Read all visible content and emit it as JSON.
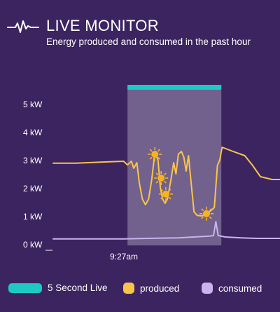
{
  "header": {
    "icon": "pulse-icon",
    "title": "LIVE MONITOR",
    "subtitle": "Energy produced and consumed in the past hour"
  },
  "colors": {
    "background": "#3c2460",
    "live_bar": "#1ec9c5",
    "highlight": "rgba(255,255,255,0.28)",
    "produced": "#f9c44a",
    "consumed": "#c8b4ee",
    "sun": "#f9b21e"
  },
  "legend": [
    {
      "key": "live",
      "label": "5 Second Live"
    },
    {
      "key": "produced",
      "label": "produced"
    },
    {
      "key": "consumed",
      "label": "consumed"
    }
  ],
  "chart_data": {
    "type": "line",
    "title": "",
    "xlabel": "",
    "ylabel": "",
    "ylim": [
      0,
      5
    ],
    "yticks": [
      "5 kW",
      "4 kW",
      "3 kW",
      "2 kW",
      "1 kW",
      "0 kW"
    ],
    "xticks": [
      "9:27am"
    ],
    "grid": false,
    "legend_position": "bottom",
    "series": [
      {
        "name": "produced",
        "points": [
          [
            0,
            2.88
          ],
          [
            3,
            2.88
          ],
          [
            6,
            2.92
          ],
          [
            9,
            2.95
          ],
          [
            9.5,
            2.82
          ],
          [
            10,
            2.95
          ],
          [
            10.3,
            2.7
          ],
          [
            10.7,
            2.9
          ],
          [
            11,
            2.2
          ],
          [
            11.4,
            1.6
          ],
          [
            11.8,
            1.4
          ],
          [
            12.2,
            1.6
          ],
          [
            12.6,
            2.3
          ],
          [
            13,
            3.25
          ],
          [
            13.4,
            3.0
          ],
          [
            13.7,
            2.0
          ],
          [
            14,
            1.6
          ],
          [
            14.3,
            1.45
          ],
          [
            14.6,
            1.6
          ],
          [
            15,
            2.2
          ],
          [
            15.4,
            2.9
          ],
          [
            15.7,
            2.5
          ],
          [
            16,
            3.2
          ],
          [
            16.4,
            3.3
          ],
          [
            16.7,
            3.1
          ],
          [
            17,
            2.6
          ],
          [
            17.3,
            3.15
          ],
          [
            17.6,
            2.3
          ],
          [
            18,
            1.15
          ],
          [
            18.4,
            1.02
          ],
          [
            19,
            1.0
          ],
          [
            20,
            1.15
          ],
          [
            20.6,
            1.3
          ],
          [
            21,
            2.8
          ],
          [
            21.3,
            3.0
          ],
          [
            21.6,
            3.45
          ],
          [
            23,
            3.3
          ],
          [
            24.5,
            3.15
          ],
          [
            25.5,
            2.8
          ],
          [
            26.5,
            2.4
          ],
          [
            28,
            2.3
          ],
          [
            29,
            2.3
          ]
        ]
      },
      {
        "name": "consumed",
        "points": [
          [
            0,
            0.18
          ],
          [
            5,
            0.18
          ],
          [
            9,
            0.18
          ],
          [
            12,
            0.2
          ],
          [
            16,
            0.22
          ],
          [
            18,
            0.25
          ],
          [
            20,
            0.28
          ],
          [
            20.5,
            0.3
          ],
          [
            20.8,
            0.8
          ],
          [
            21.1,
            0.3
          ],
          [
            22,
            0.25
          ],
          [
            24,
            0.22
          ],
          [
            26,
            0.2
          ],
          [
            29,
            0.2
          ]
        ]
      }
    ],
    "live_window": [
      9.5,
      21.5
    ],
    "sun_markers": [
      [
        13.0,
        3.2
      ],
      [
        13.8,
        2.35
      ],
      [
        14.4,
        1.78
      ],
      [
        19.6,
        1.08
      ]
    ]
  }
}
